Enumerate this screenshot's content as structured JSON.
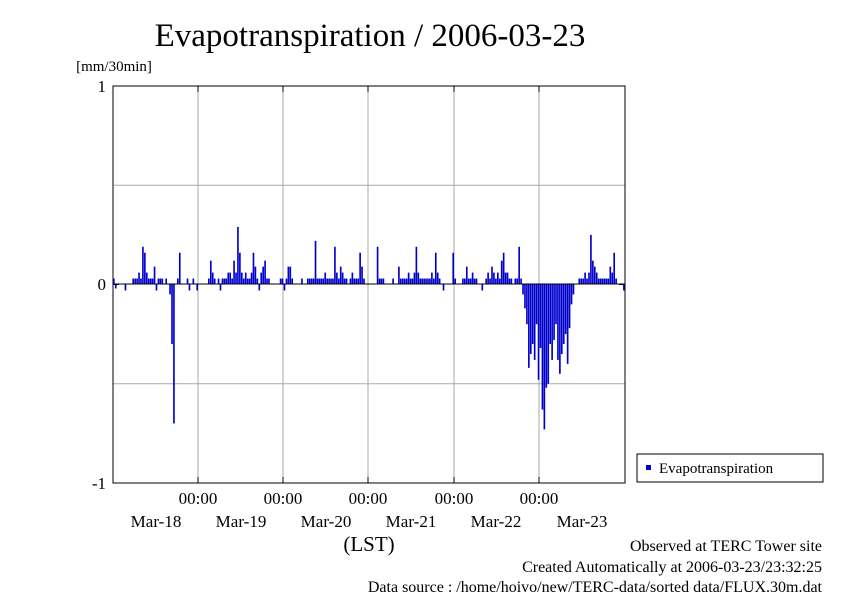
{
  "chart_data": {
    "type": "bar",
    "title": "Evapotranspiration / 2006-03-23",
    "ylabel": "[mm/30min]",
    "xlabel": "(LST)",
    "ylim": [
      -1,
      1
    ],
    "y_ticks": [
      "1",
      "0",
      "-1"
    ],
    "y_tick_values": [
      1,
      0,
      -1
    ],
    "x_tick_time": [
      "00:00",
      "00:00",
      "00:00",
      "00:00",
      "00:00"
    ],
    "x_date_labels": [
      "Mar-18",
      "Mar-19",
      "Mar-20",
      "Mar-21",
      "Mar-22",
      "Mar-23"
    ],
    "legend": {
      "position": "right",
      "entries": [
        "Evapotranspiration"
      ]
    },
    "grid": true,
    "color": "#0000cc",
    "series": [
      {
        "name": "Evapotranspiration",
        "values_note": "",
        "x_start": "Mar-17 12:00",
        "x_end": "Mar-23 24:00",
        "values": [
          0.03,
          -0.02,
          0,
          0,
          0,
          0,
          -0.03,
          0,
          0,
          0,
          0.03,
          0.03,
          0.03,
          0.06,
          0.03,
          0.19,
          0.16,
          0.06,
          0.03,
          0.03,
          0.03,
          0.09,
          -0.03,
          0.03,
          0.03,
          0.03,
          0,
          0.03,
          0,
          -0.05,
          -0.3,
          -0.7,
          0,
          0.03,
          0.16,
          0,
          0,
          0,
          0.03,
          -0.03,
          0,
          0.03,
          0,
          -0.03,
          0,
          0,
          0,
          0,
          0,
          0.03,
          0.12,
          0.06,
          0.03,
          0,
          0.03,
          -0.03,
          0.03,
          0.03,
          0.03,
          0.06,
          0.06,
          0.03,
          0.12,
          0.06,
          0.29,
          0.16,
          0.06,
          0.03,
          0.06,
          0.03,
          0.03,
          0.06,
          0.16,
          0.09,
          0.03,
          -0.03,
          0.06,
          0.09,
          0.12,
          0.03,
          0.03,
          0,
          0,
          0,
          0,
          0,
          0.03,
          0.03,
          -0.03,
          0.03,
          0.09,
          0.09,
          0.03,
          0,
          0,
          0,
          0,
          0.03,
          0,
          0,
          0.03,
          0.03,
          0.03,
          0.03,
          0.22,
          0.03,
          0.03,
          0.03,
          0.03,
          0.06,
          0.03,
          0.03,
          0.03,
          0.03,
          0.19,
          0.06,
          0.03,
          0.09,
          0.06,
          0.03,
          0.03,
          0,
          0.03,
          0.06,
          0.03,
          0.03,
          0.03,
          0.16,
          0.09,
          0.03,
          0,
          0,
          0,
          0,
          0,
          0,
          0.19,
          0.03,
          0.03,
          0.03,
          0,
          0,
          0,
          0,
          0.03,
          0,
          0,
          0.09,
          0.03,
          0.03,
          0.03,
          0.03,
          0.06,
          0.03,
          0.03,
          0.06,
          0.19,
          0.06,
          0.03,
          0.03,
          0.03,
          0.03,
          0.03,
          0.03,
          0.06,
          0.03,
          0.16,
          0.06,
          0.03,
          0,
          -0.03,
          0,
          0,
          0,
          0,
          0.16,
          0.03,
          0,
          0,
          0,
          0.03,
          0.03,
          0.09,
          0.03,
          0.03,
          0.06,
          0.03,
          0.03,
          0,
          0,
          -0.03,
          0,
          0.03,
          0.06,
          0.03,
          0.09,
          0.06,
          0.03,
          0.06,
          0.03,
          0.12,
          0.16,
          0.06,
          0.06,
          0.03,
          0.03,
          0,
          0.03,
          0.03,
          0.19,
          0.03,
          -0.05,
          -0.12,
          -0.2,
          -0.42,
          -0.35,
          -0.3,
          -0.38,
          -0.2,
          -0.48,
          -0.32,
          -0.63,
          -0.73,
          -0.52,
          -0.5,
          -0.3,
          -0.38,
          -0.28,
          -0.2,
          -0.38,
          -0.45,
          -0.35,
          -0.3,
          -0.25,
          -0.4,
          -0.22,
          -0.1,
          -0.05,
          0,
          0,
          0.03,
          0.03,
          0.03,
          0.06,
          0.03,
          0.06,
          0.25,
          0.12,
          0.09,
          0.06,
          0.03,
          0.03,
          0.03,
          0.03,
          0.03,
          0.03,
          0.09,
          0.06,
          0.16,
          0.03,
          0,
          0,
          0,
          -0.03
        ]
      }
    ]
  },
  "footer": {
    "line1": "Observed at TERC Tower site",
    "line2": "Created Automatically at 2006-03-23/23:32:25",
    "line3": "Data source : /home/hoivo/new/TERC-data/sorted  data/FLUX.30m.dat"
  }
}
